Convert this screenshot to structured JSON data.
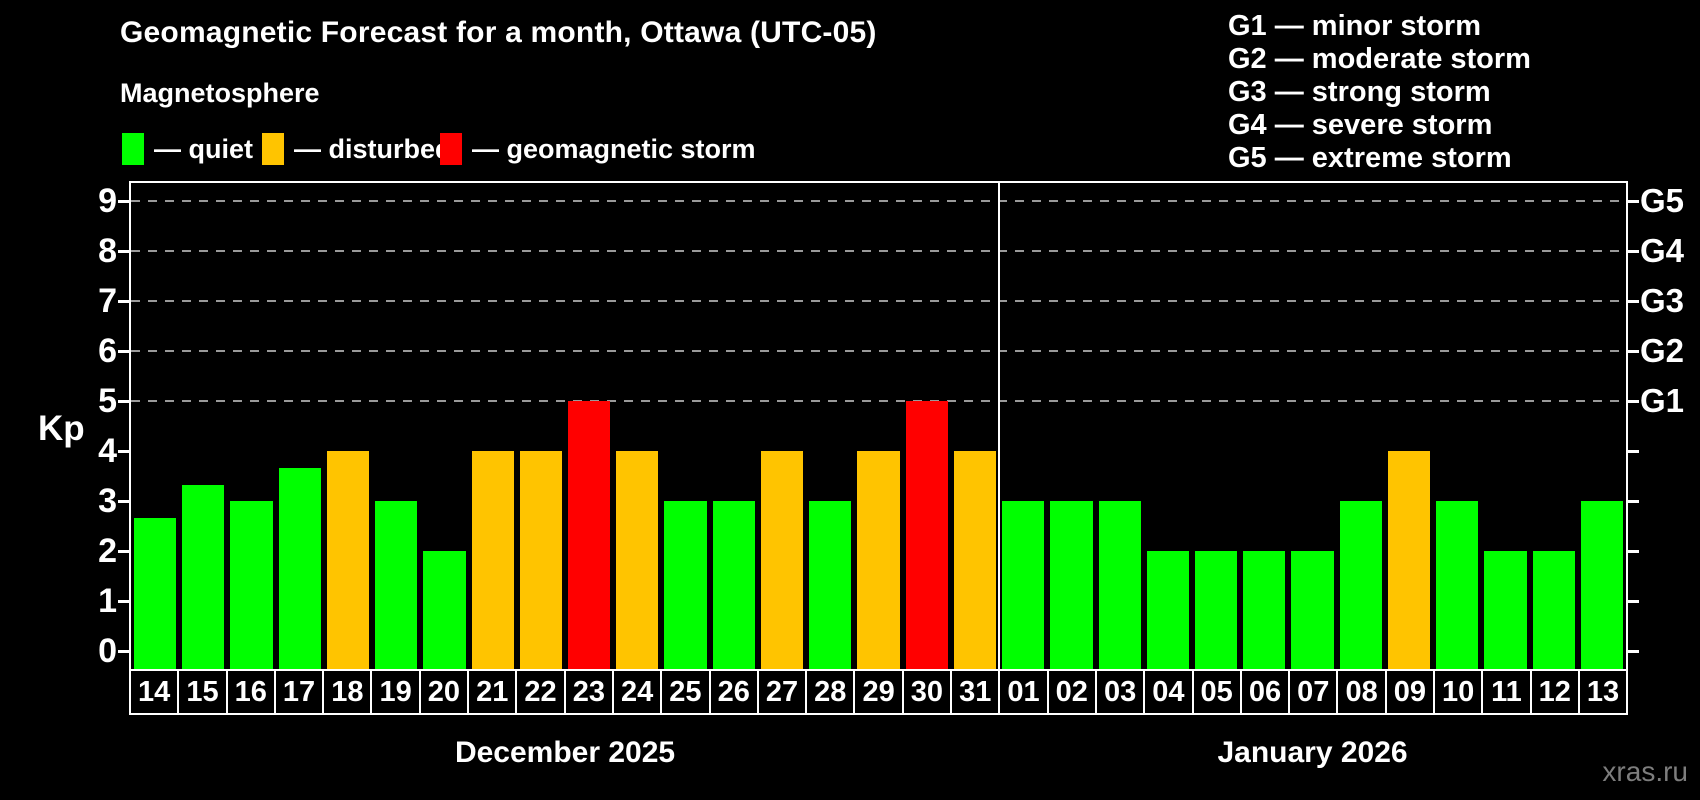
{
  "title": "Geomagnetic Forecast for a month, Ottawa (UTC-05)",
  "subtitle": "Magnetosphere",
  "status_legend": {
    "items": [
      {
        "label": "— quiet",
        "status": "quiet",
        "swatch": "green-swatch"
      },
      {
        "label": "— disturbed",
        "status": "disturbed",
        "swatch": "orange-swatch"
      },
      {
        "label": "— geomagnetic storm",
        "status": "storm",
        "swatch": "red-swatch"
      }
    ]
  },
  "g_legend": {
    "lines": [
      "G1 — minor storm",
      "G2 — moderate storm",
      "G3 — strong storm",
      "G4 — severe storm",
      "G5 — extreme storm"
    ]
  },
  "watermark": "xras.ru",
  "colors": {
    "quiet": "#00ff00",
    "disturbed": "#ffc400",
    "storm": "#ff0000",
    "background": "#000000",
    "frame": "#ffffff",
    "grid": "#9a9a9a",
    "watermark": "#7d7d7d"
  },
  "chart_data": {
    "type": "bar",
    "title": "Geomagnetic Forecast for a month, Ottawa (UTC-05)",
    "ylabel": "Kp",
    "ylim": [
      -0.36,
      9.36
    ],
    "yticks": [
      0,
      1,
      2,
      3,
      4,
      5,
      6,
      7,
      8,
      9
    ],
    "gridlines_at": [
      5,
      6,
      7,
      8,
      9
    ],
    "grid": true,
    "legend_position": "top",
    "right_axis": [
      {
        "kp": 5,
        "label": "G1"
      },
      {
        "kp": 6,
        "label": "G2"
      },
      {
        "kp": 7,
        "label": "G3"
      },
      {
        "kp": 8,
        "label": "G4"
      },
      {
        "kp": 9,
        "label": "G5"
      }
    ],
    "months": [
      {
        "label": "December 2025",
        "bars": [
          {
            "day": "14",
            "kp": 2.67,
            "status": "quiet"
          },
          {
            "day": "15",
            "kp": 3.33,
            "status": "quiet"
          },
          {
            "day": "16",
            "kp": 3,
            "status": "quiet"
          },
          {
            "day": "17",
            "kp": 3.67,
            "status": "quiet"
          },
          {
            "day": "18",
            "kp": 4,
            "status": "disturbed"
          },
          {
            "day": "19",
            "kp": 3,
            "status": "quiet"
          },
          {
            "day": "20",
            "kp": 2,
            "status": "quiet"
          },
          {
            "day": "21",
            "kp": 4,
            "status": "disturbed"
          },
          {
            "day": "22",
            "kp": 4,
            "status": "disturbed"
          },
          {
            "day": "23",
            "kp": 5,
            "status": "storm"
          },
          {
            "day": "24",
            "kp": 4,
            "status": "disturbed"
          },
          {
            "day": "25",
            "kp": 3,
            "status": "quiet"
          },
          {
            "day": "26",
            "kp": 3,
            "status": "quiet"
          },
          {
            "day": "27",
            "kp": 4,
            "status": "disturbed"
          },
          {
            "day": "28",
            "kp": 3,
            "status": "quiet"
          },
          {
            "day": "29",
            "kp": 4,
            "status": "disturbed"
          },
          {
            "day": "30",
            "kp": 5,
            "status": "storm"
          },
          {
            "day": "31",
            "kp": 4,
            "status": "disturbed"
          }
        ]
      },
      {
        "label": "January 2026",
        "bars": [
          {
            "day": "01",
            "kp": 3,
            "status": "quiet"
          },
          {
            "day": "02",
            "kp": 3,
            "status": "quiet"
          },
          {
            "day": "03",
            "kp": 3,
            "status": "quiet"
          },
          {
            "day": "04",
            "kp": 2,
            "status": "quiet"
          },
          {
            "day": "05",
            "kp": 2,
            "status": "quiet"
          },
          {
            "day": "06",
            "kp": 2,
            "status": "quiet"
          },
          {
            "day": "07",
            "kp": 2,
            "status": "quiet"
          },
          {
            "day": "08",
            "kp": 3,
            "status": "quiet"
          },
          {
            "day": "09",
            "kp": 4,
            "status": "disturbed"
          },
          {
            "day": "10",
            "kp": 3,
            "status": "quiet"
          },
          {
            "day": "11",
            "kp": 2,
            "status": "quiet"
          },
          {
            "day": "12",
            "kp": 2,
            "status": "quiet"
          },
          {
            "day": "13",
            "kp": 3,
            "status": "quiet"
          }
        ]
      }
    ]
  }
}
